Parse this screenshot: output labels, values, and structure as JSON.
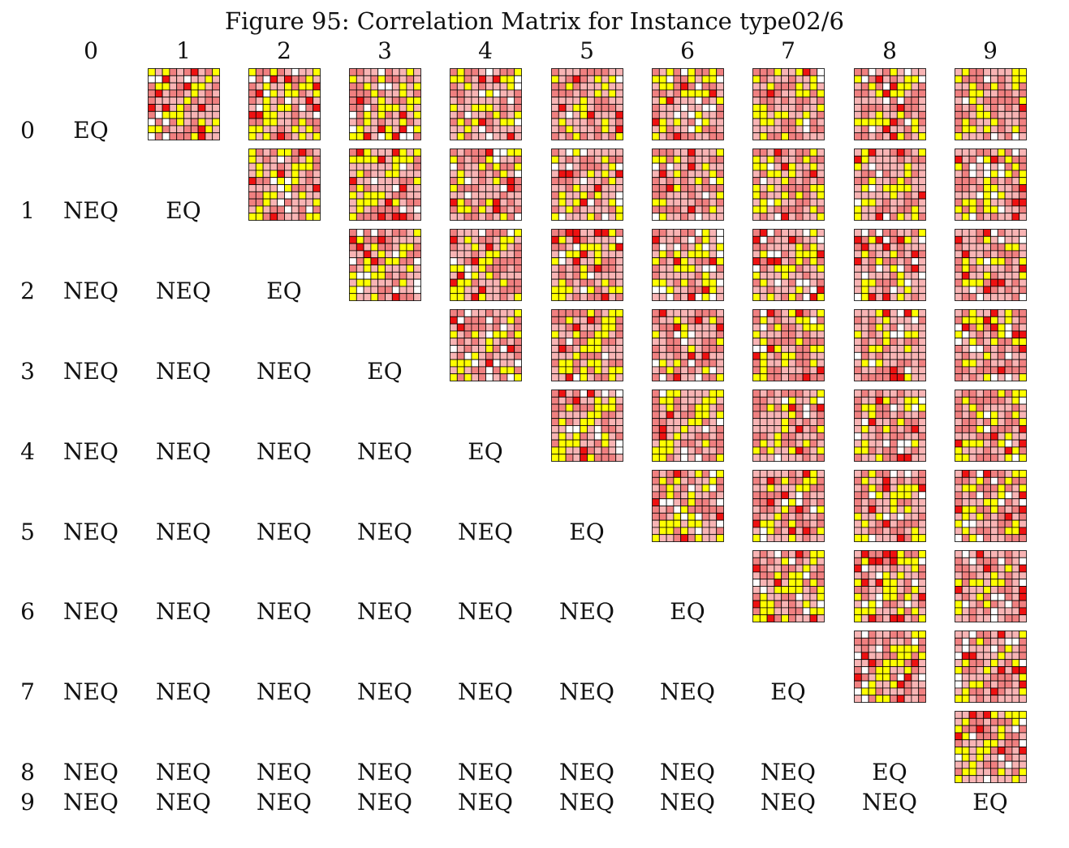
{
  "title": "Figure 95: Correlation Matrix for Instance type02/6",
  "chart_data": {
    "type": "heatmap",
    "title": "Figure 95: Correlation Matrix for Instance type02/6",
    "col_labels": [
      "0",
      "1",
      "2",
      "3",
      "4",
      "5",
      "6",
      "7",
      "8",
      "9"
    ],
    "row_labels": [
      "0",
      "1",
      "2",
      "3",
      "4",
      "5",
      "6",
      "7",
      "8",
      "9"
    ],
    "lower_triangle_labels": [
      [
        "EQ"
      ],
      [
        "NEQ",
        "EQ"
      ],
      [
        "NEQ",
        "NEQ",
        "EQ"
      ],
      [
        "NEQ",
        "NEQ",
        "NEQ",
        "EQ"
      ],
      [
        "NEQ",
        "NEQ",
        "NEQ",
        "NEQ",
        "EQ"
      ],
      [
        "NEQ",
        "NEQ",
        "NEQ",
        "NEQ",
        "NEQ",
        "EQ"
      ],
      [
        "NEQ",
        "NEQ",
        "NEQ",
        "NEQ",
        "NEQ",
        "NEQ",
        "EQ"
      ],
      [
        "NEQ",
        "NEQ",
        "NEQ",
        "NEQ",
        "NEQ",
        "NEQ",
        "NEQ",
        "EQ"
      ],
      [
        "NEQ",
        "NEQ",
        "NEQ",
        "NEQ",
        "NEQ",
        "NEQ",
        "NEQ",
        "NEQ",
        "EQ"
      ],
      [
        "NEQ",
        "NEQ",
        "NEQ",
        "NEQ",
        "NEQ",
        "NEQ",
        "NEQ",
        "NEQ",
        "NEQ",
        "EQ"
      ]
    ],
    "upper_triangle": "10x10 mini correlation heatmap per cell pair",
    "thumbnail_grid": 10,
    "colors": {
      "yellow": "#ffff00",
      "red": "#ee1111",
      "mid": "#f08080",
      "light": "#f8b4b4",
      "white": "#ffffff",
      "grid": "#000000"
    }
  }
}
